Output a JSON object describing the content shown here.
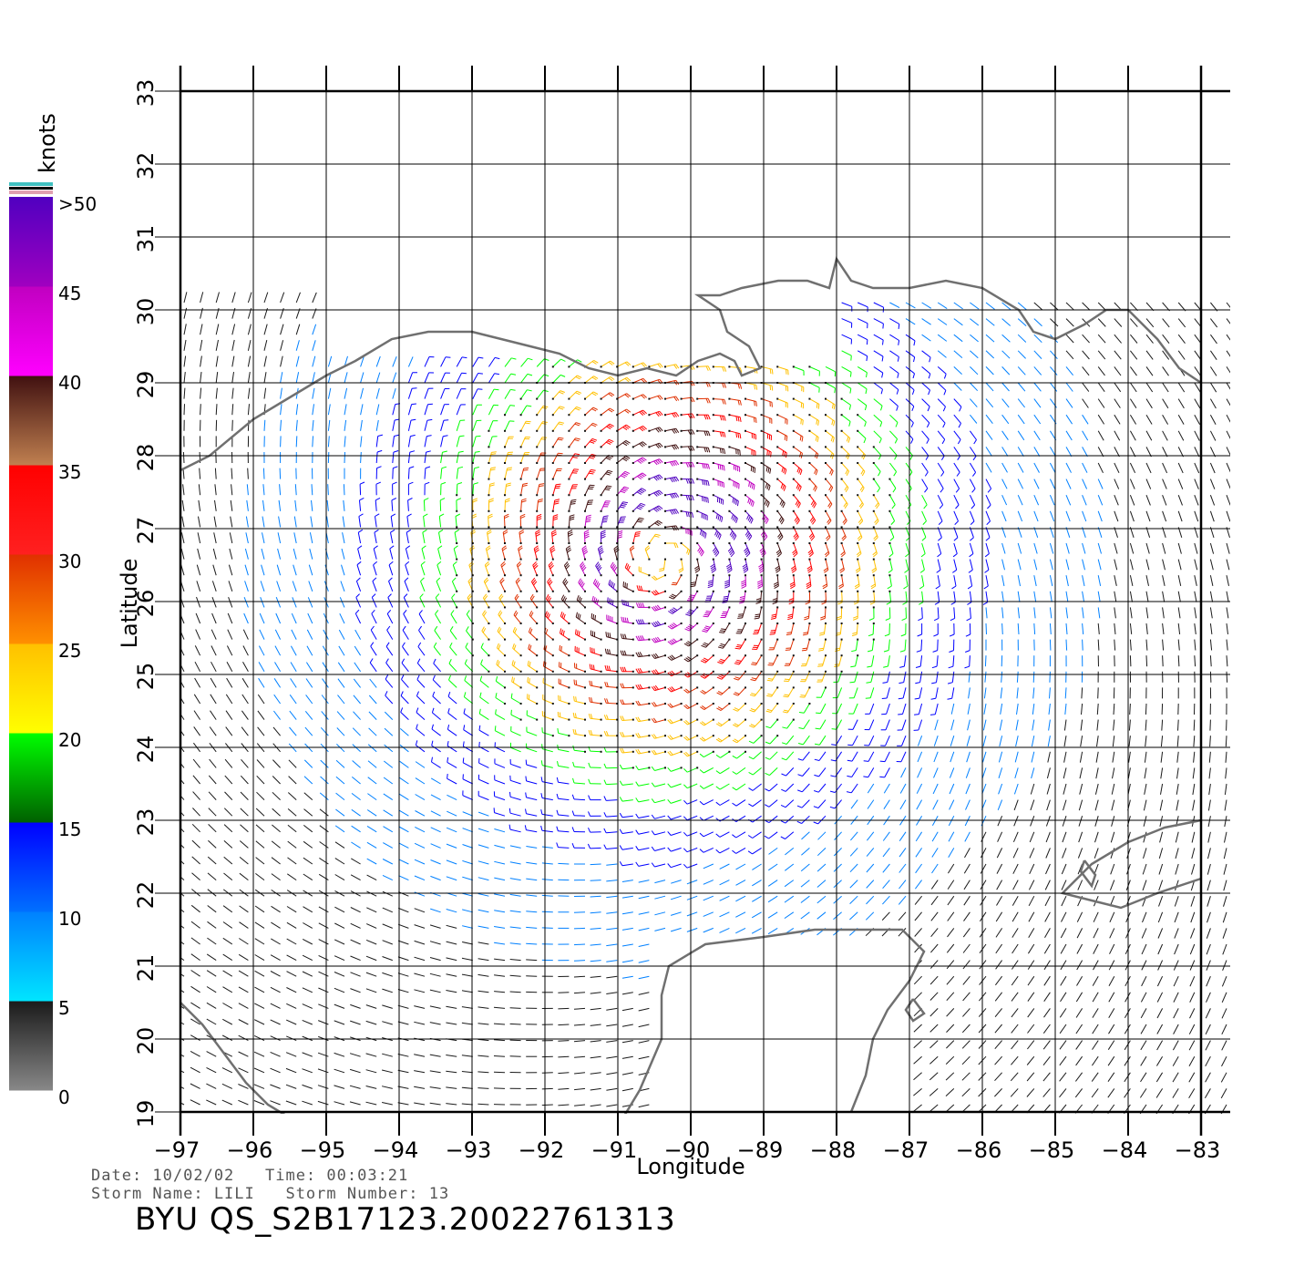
{
  "map": {
    "lon_range": [
      -97,
      -83
    ],
    "lat_range": [
      19,
      33
    ],
    "lon_ticks": [
      "−97",
      "−96",
      "−95",
      "−94",
      "−93",
      "−92",
      "−91",
      "−90",
      "−89",
      "−88",
      "−87",
      "−86",
      "−85",
      "−84",
      "−83"
    ],
    "lat_ticks": [
      "19",
      "20",
      "21",
      "22",
      "23",
      "24",
      "25",
      "26",
      "27",
      "28",
      "29",
      "30",
      "31",
      "32",
      "33"
    ],
    "xlabel": "Longitude",
    "ylabel": "Latitude",
    "grid": true,
    "storm_center": {
      "lon": -90.4,
      "lat": 26.6
    },
    "coast_color": "#707070",
    "legend_placement": "left"
  },
  "legend": {
    "unit": "knots",
    "labels": [
      ">50",
      "45",
      "40",
      "35",
      "30",
      "25",
      "20",
      "15",
      "10",
      "5",
      "0"
    ],
    "bands": [
      {
        "from": 0,
        "to": 5,
        "colors": [
          "#888888",
          "#1a1a1a"
        ]
      },
      {
        "from": 5,
        "to": 10,
        "colors": [
          "#00e5ff",
          "#0080ff"
        ]
      },
      {
        "from": 10,
        "to": 15,
        "colors": [
          "#0070ff",
          "#0000ff"
        ]
      },
      {
        "from": 15,
        "to": 20,
        "colors": [
          "#006000",
          "#00ff00"
        ]
      },
      {
        "from": 20,
        "to": 25,
        "colors": [
          "#ffff00",
          "#ffc000"
        ]
      },
      {
        "from": 25,
        "to": 30,
        "colors": [
          "#ff9000",
          "#e03000"
        ]
      },
      {
        "from": 30,
        "to": 35,
        "colors": [
          "#ff2020",
          "#ff0000"
        ]
      },
      {
        "from": 35,
        "to": 40,
        "colors": [
          "#c08050",
          "#401010"
        ]
      },
      {
        "from": 40,
        "to": 45,
        "colors": [
          "#ff00ff",
          "#c000c0"
        ]
      },
      {
        "from": 45,
        "to": 50,
        "colors": [
          "#a000c0",
          "#5000c0"
        ]
      }
    ]
  },
  "info": {
    "line1": "Date: 10/02/02   Time: 00:03:21",
    "line2": "Storm Name: LILI   Storm Number: 13",
    "product_id": "BYU QS_S2B17123.20022761313"
  }
}
